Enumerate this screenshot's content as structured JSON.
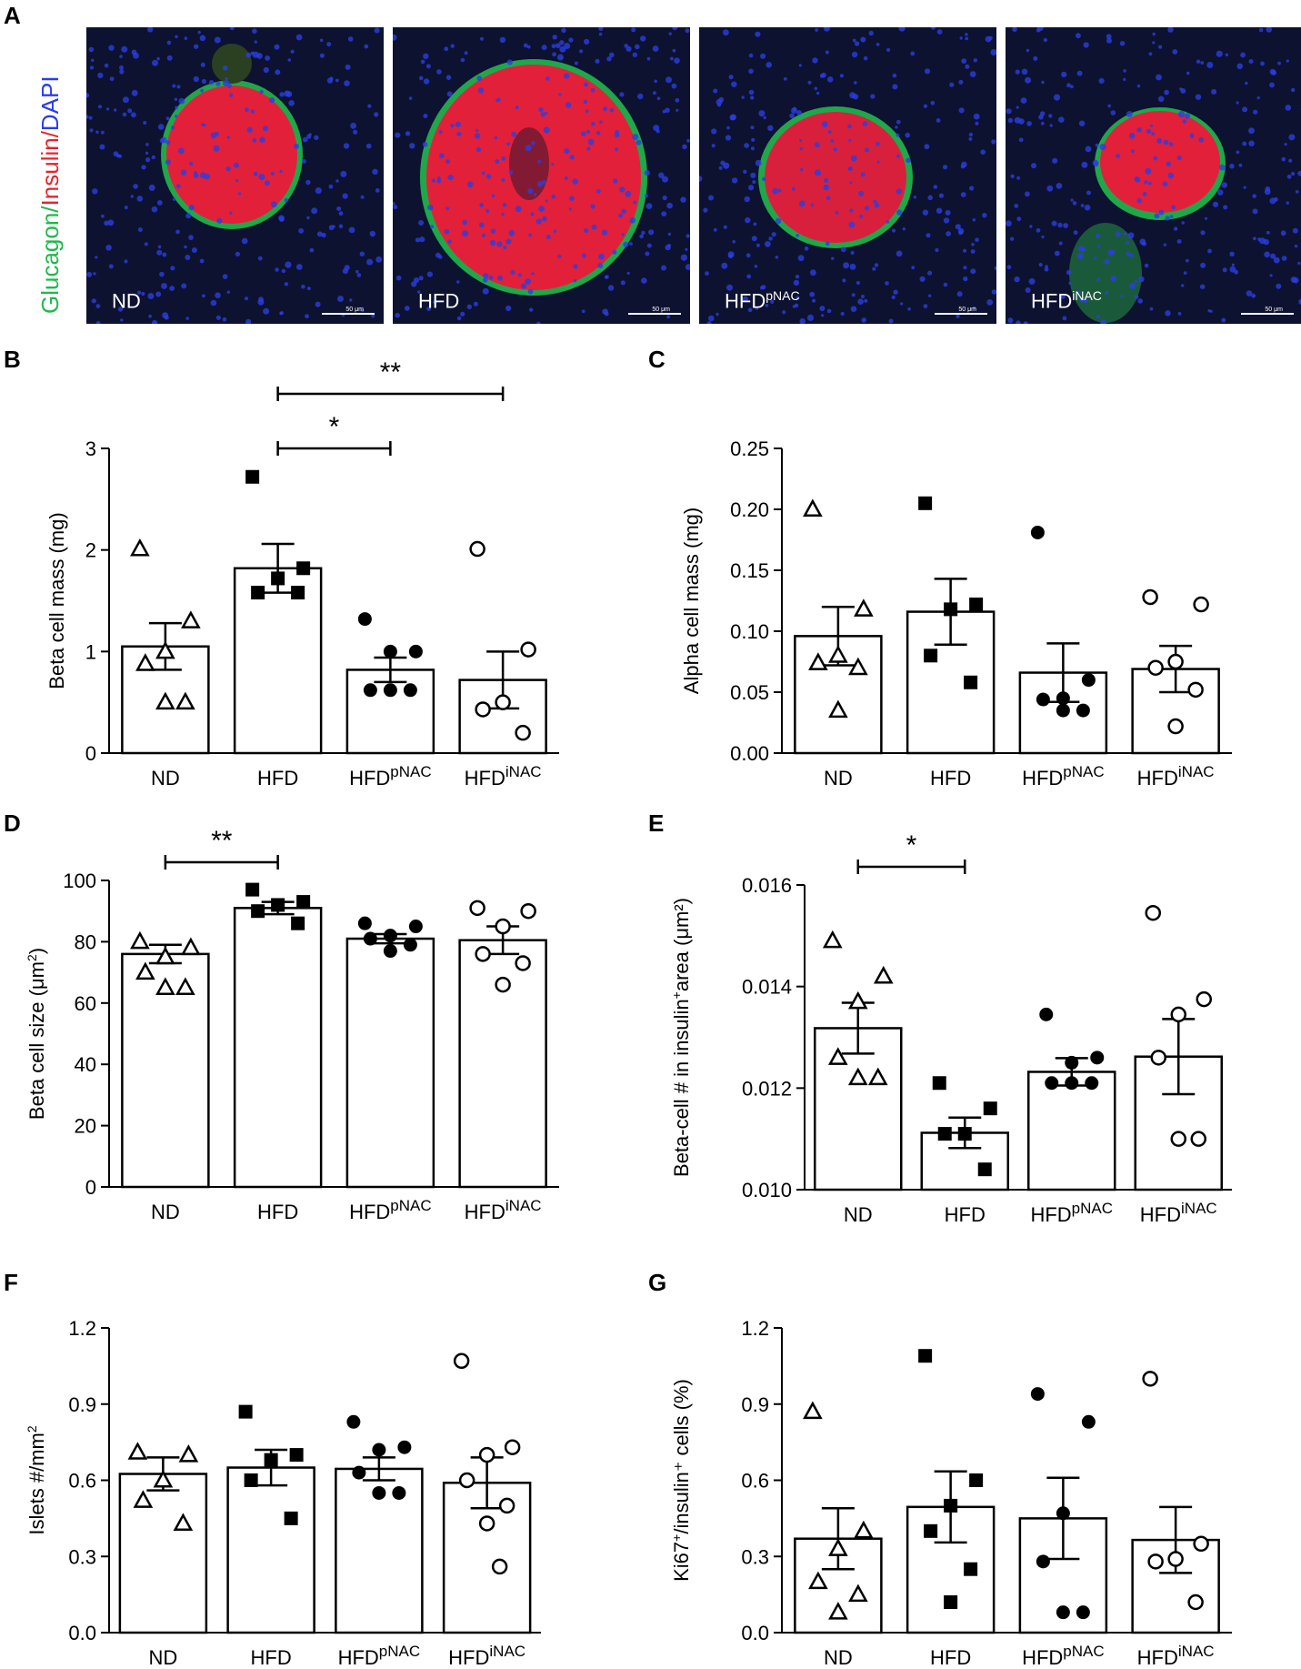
{
  "figure": {
    "panel_letters": [
      "A",
      "B",
      "C",
      "D",
      "E",
      "F",
      "G"
    ],
    "micrographs": [
      {
        "label": "ND",
        "sup": "",
        "scale": "50 μm"
      },
      {
        "label": "HFD",
        "sup": "",
        "scale": "50 μm"
      },
      {
        "label": "HFD",
        "sup": "pNAC",
        "scale": "50 μm"
      },
      {
        "label": "HFD",
        "sup": "iNAC",
        "scale": "50 μm"
      }
    ],
    "stain_legend": [
      {
        "text": "Glucagon",
        "color": "#1fb84a"
      },
      {
        "text": "/",
        "color": "#1fb84a"
      },
      {
        "text": "Insulin",
        "color": "#e8222a"
      },
      {
        "text": "/",
        "color": "#e8222a"
      },
      {
        "text": "DAPI",
        "color": "#2a3cf0"
      }
    ]
  },
  "chart_data": [
    {
      "panel": "B",
      "type": "bar",
      "categories": [
        {
          "main": "ND",
          "sup": ""
        },
        {
          "main": "HFD",
          "sup": ""
        },
        {
          "main": "HFD",
          "sup": "pNAC"
        },
        {
          "main": "HFD",
          "sup": "iNAC"
        }
      ],
      "ylabel": "Beta cell mass (mg)",
      "ylabel_sup": "",
      "ylabel_suffix": "",
      "ylim": [
        0,
        3
      ],
      "yticks": [
        "0",
        "1",
        "2",
        "3"
      ],
      "means": [
        1.05,
        1.82,
        0.82,
        0.72
      ],
      "sem": [
        0.23,
        0.24,
        0.12,
        0.28
      ],
      "points": [
        [
          2.01,
          1.3,
          1.0,
          0.88,
          0.5,
          0.5
        ],
        [
          2.72,
          1.82,
          1.72,
          1.58,
          1.58
        ],
        [
          1.32,
          1.0,
          1.0,
          0.62,
          0.62,
          0.62
        ],
        [
          2.01,
          1.02,
          0.5,
          0.43,
          0.2
        ]
      ],
      "markers": [
        "triangle-open",
        "square-filled",
        "circle-filled",
        "circle-open"
      ],
      "significance": [
        {
          "from": 1,
          "to": 2,
          "label": "*"
        },
        {
          "from": 1,
          "to": 3,
          "label": "**"
        }
      ]
    },
    {
      "panel": "C",
      "type": "bar",
      "categories": [
        {
          "main": "ND",
          "sup": ""
        },
        {
          "main": "HFD",
          "sup": ""
        },
        {
          "main": "HFD",
          "sup": "pNAC"
        },
        {
          "main": "HFD",
          "sup": "iNAC"
        }
      ],
      "ylabel": "Alpha cell mass (mg)",
      "ylabel_sup": "",
      "ylabel_suffix": "",
      "ylim": [
        0,
        0.25
      ],
      "yticks": [
        "0.00",
        "0.05",
        "0.10",
        "0.15",
        "0.20",
        "0.25"
      ],
      "means": [
        0.096,
        0.116,
        0.066,
        0.069
      ],
      "sem": [
        0.024,
        0.027,
        0.024,
        0.019
      ],
      "points": [
        [
          0.2,
          0.118,
          0.08,
          0.074,
          0.07,
          0.035
        ],
        [
          0.205,
          0.122,
          0.118,
          0.08,
          0.058
        ],
        [
          0.181,
          0.06,
          0.045,
          0.044,
          0.035,
          0.035
        ],
        [
          0.128,
          0.122,
          0.075,
          0.07,
          0.052,
          0.022
        ]
      ],
      "markers": [
        "triangle-open",
        "square-filled",
        "circle-filled",
        "circle-open"
      ],
      "significance": []
    },
    {
      "panel": "D",
      "type": "bar",
      "categories": [
        {
          "main": "ND",
          "sup": ""
        },
        {
          "main": "HFD",
          "sup": ""
        },
        {
          "main": "HFD",
          "sup": "pNAC"
        },
        {
          "main": "HFD",
          "sup": "iNAC"
        }
      ],
      "ylabel": "Beta cell size (μm",
      "ylabel_sup": "2",
      "ylabel_suffix": ")",
      "ylim": [
        0,
        100
      ],
      "yticks": [
        "0",
        "20",
        "40",
        "60",
        "80",
        "100"
      ],
      "means": [
        76,
        91,
        81,
        80.5
      ],
      "sem": [
        3,
        2,
        1.5,
        4.5
      ],
      "points": [
        [
          80,
          78,
          75,
          70,
          65,
          65
        ],
        [
          97,
          93,
          92,
          90,
          86
        ],
        [
          86,
          85,
          82,
          81,
          79,
          77
        ],
        [
          91,
          90,
          85,
          76,
          73,
          66
        ]
      ],
      "markers": [
        "triangle-open",
        "square-filled",
        "circle-filled",
        "circle-open"
      ],
      "significance": [
        {
          "from": 0,
          "to": 1,
          "label": "**"
        }
      ]
    },
    {
      "panel": "E",
      "type": "bar",
      "categories": [
        {
          "main": "ND",
          "sup": ""
        },
        {
          "main": "HFD",
          "sup": ""
        },
        {
          "main": "HFD",
          "sup": "pNAC"
        },
        {
          "main": "HFD",
          "sup": "iNAC"
        }
      ],
      "ylabel": "Beta-cell # in insulin",
      "ylabel_sup": "+",
      "ylabel_suffix": "area (μm²)",
      "ylim": [
        0.01,
        0.016
      ],
      "yticks": [
        "0.010",
        "0.012",
        "0.014",
        "0.016"
      ],
      "means": [
        0.01318,
        0.01112,
        0.01232,
        0.01262
      ],
      "sem": [
        0.0005,
        0.0003,
        0.00027,
        0.00074
      ],
      "points": [
        [
          0.0149,
          0.0142,
          0.0137,
          0.0126,
          0.0122,
          0.0122
        ],
        [
          0.0121,
          0.0116,
          0.0111,
          0.0111,
          0.0104
        ],
        [
          0.01345,
          0.0126,
          0.0125,
          0.0121,
          0.0121,
          0.0121
        ],
        [
          0.01545,
          0.01375,
          0.01345,
          0.0126,
          0.011,
          0.011
        ]
      ],
      "markers": [
        "triangle-open",
        "square-filled",
        "circle-filled",
        "circle-open"
      ],
      "significance": [
        {
          "from": 0,
          "to": 1,
          "label": "*"
        }
      ]
    },
    {
      "panel": "F",
      "type": "bar",
      "categories": [
        {
          "main": "ND",
          "sup": ""
        },
        {
          "main": "HFD",
          "sup": ""
        },
        {
          "main": "HFD",
          "sup": "pNAC"
        },
        {
          "main": "HFD",
          "sup": "iNAC"
        }
      ],
      "ylabel": "Islets #/mm",
      "ylabel_sup": "2",
      "ylabel_suffix": "",
      "ylim": [
        0,
        1.2
      ],
      "yticks": [
        "0.0",
        "0.3",
        "0.6",
        "0.9",
        "1.2"
      ],
      "means": [
        0.625,
        0.65,
        0.645,
        0.59
      ],
      "sem": [
        0.065,
        0.07,
        0.045,
        0.1
      ],
      "points": [
        [
          0.71,
          0.7,
          0.6,
          0.52,
          0.43
        ],
        [
          0.87,
          0.7,
          0.68,
          0.6,
          0.45
        ],
        [
          0.83,
          0.73,
          0.72,
          0.63,
          0.55,
          0.55
        ],
        [
          1.07,
          0.73,
          0.7,
          0.6,
          0.5,
          0.43,
          0.26
        ]
      ],
      "markers": [
        "triangle-open",
        "square-filled",
        "circle-filled",
        "circle-open"
      ],
      "significance": []
    },
    {
      "panel": "G",
      "type": "bar",
      "categories": [
        {
          "main": "ND",
          "sup": ""
        },
        {
          "main": "HFD",
          "sup": ""
        },
        {
          "main": "HFD",
          "sup": "pNAC"
        },
        {
          "main": "HFD",
          "sup": "iNAC"
        }
      ],
      "ylabel": "Ki67",
      "ylabel_sup": "+",
      "ylabel_suffix": "/insulin⁺ cells (%)",
      "ylim": [
        0,
        1.2
      ],
      "yticks": [
        "0.0",
        "0.3",
        "0.6",
        "0.9",
        "1.2"
      ],
      "means": [
        0.37,
        0.495,
        0.45,
        0.365
      ],
      "sem": [
        0.12,
        0.14,
        0.16,
        0.13
      ],
      "points": [
        [
          0.87,
          0.4,
          0.33,
          0.2,
          0.15,
          0.08
        ],
        [
          1.09,
          0.6,
          0.5,
          0.4,
          0.25,
          0.12
        ],
        [
          0.94,
          0.83,
          0.47,
          0.28,
          0.08,
          0.08
        ],
        [
          1.0,
          0.35,
          0.29,
          0.28,
          0.12
        ]
      ],
      "markers": [
        "triangle-open",
        "square-filled",
        "circle-filled",
        "circle-open"
      ],
      "significance": []
    }
  ]
}
